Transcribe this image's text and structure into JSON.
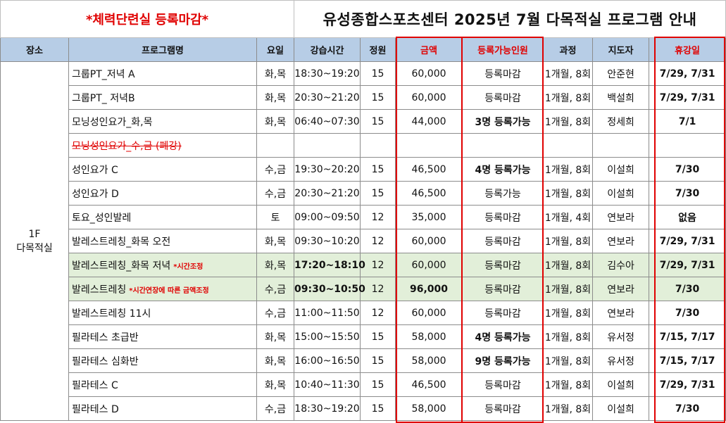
{
  "banner": {
    "left": "*체력단련실 등록마감*",
    "right": "유성종합스포츠센터 2025년 7월 다목적실 프로그램 안내"
  },
  "headers": {
    "place": "장소",
    "program": "프로그램명",
    "day": "요일",
    "time": "강습시간",
    "capacity": "정원",
    "price": "금액",
    "available": "등록가능인원",
    "course": "과정",
    "instructor": "지도자",
    "closed": "휴강일"
  },
  "place": "1F\n다목적실",
  "place_line1": "1F",
  "place_line2": "다목적실",
  "rows": [
    {
      "name": "그룹PT_저녁 A",
      "note": "",
      "day": "화,목",
      "time": "18:30~19:20",
      "capacity": "15",
      "price": "60,000",
      "available": "등록마감",
      "course": "1개월, 8회",
      "instructor": "안준현",
      "closed": "7/29, 7/31"
    },
    {
      "name": "그룹PT_ 저녁B",
      "note": "",
      "day": "화,목",
      "time": "20:30~21:20",
      "capacity": "15",
      "price": "60,000",
      "available": "등록마감",
      "course": "1개월, 8회",
      "instructor": "백설희",
      "closed": "7/29, 7/31"
    },
    {
      "name": "모닝성인요가_화,목",
      "note": "",
      "day": "화,목",
      "time": "06:40~07:30",
      "capacity": "15",
      "price": "44,000",
      "available": "3명 등록가능",
      "course": "1개월, 8회",
      "instructor": "정세희",
      "closed": "7/1"
    },
    {
      "name": "모닝성인요가_수,금 (폐강)",
      "note": "",
      "day": "",
      "time": "",
      "capacity": "",
      "price": "",
      "available": "",
      "course": "",
      "instructor": "",
      "closed": ""
    },
    {
      "name": "성인요가 C",
      "note": "",
      "day": "수,금",
      "time": "19:30~20:20",
      "capacity": "15",
      "price": "46,500",
      "available": "4명 등록가능",
      "course": "1개월, 8회",
      "instructor": "이설희",
      "closed": "7/30"
    },
    {
      "name": "성인요가 D",
      "note": "",
      "day": "수,금",
      "time": "20:30~21:20",
      "capacity": "15",
      "price": "46,500",
      "available": "등록가능",
      "course": "1개월, 8회",
      "instructor": "이설희",
      "closed": "7/30"
    },
    {
      "name": "토요_성인발레",
      "note": "",
      "day": "토",
      "time": "09:00~09:50",
      "capacity": "12",
      "price": "35,000",
      "available": "등록마감",
      "course": "1개월, 4회",
      "instructor": "연보라",
      "closed": "없음"
    },
    {
      "name": "발레스트레칭_화목 오전",
      "note": "",
      "day": "화,목",
      "time": "09:30~10:20",
      "capacity": "12",
      "price": "60,000",
      "available": "등록마감",
      "course": "1개월, 8회",
      "instructor": "연보라",
      "closed": "7/29, 7/31"
    },
    {
      "name": "발레스트레칭_화목 저녁",
      "note": "*시간조정",
      "day": "화,목",
      "time": "17:20~18:10",
      "capacity": "12",
      "price": "60,000",
      "available": "등록마감",
      "course": "1개월, 8회",
      "instructor": "김수아",
      "closed": "7/29, 7/31"
    },
    {
      "name": "발레스트레칭",
      "note": "*시간연장에 따른 금액조정",
      "day": "수,금",
      "time": "09:30~10:50",
      "capacity": "12",
      "price": "96,000",
      "available": "등록마감",
      "course": "1개월, 8회",
      "instructor": "연보라",
      "closed": "7/30"
    },
    {
      "name": "발레스트레칭 11시",
      "note": "",
      "day": "수,금",
      "time": "11:00~11:50",
      "capacity": "12",
      "price": "60,000",
      "available": "등록마감",
      "course": "1개월, 8회",
      "instructor": "연보라",
      "closed": "7/30"
    },
    {
      "name": "필라테스 초급반",
      "note": "",
      "day": "화,목",
      "time": "15:00~15:50",
      "capacity": "15",
      "price": "58,000",
      "available": "4명 등록가능",
      "course": "1개월, 8회",
      "instructor": "유서정",
      "closed": "7/15, 7/17"
    },
    {
      "name": "필라테스 심화반",
      "note": "",
      "day": "화,목",
      "time": "16:00~16:50",
      "capacity": "15",
      "price": "58,000",
      "available": "9명 등록가능",
      "course": "1개월, 8회",
      "instructor": "유서정",
      "closed": "7/15, 7/17"
    },
    {
      "name": "필라테스 C",
      "note": "",
      "day": "화,목",
      "time": "10:40~11:30",
      "capacity": "15",
      "price": "46,500",
      "available": "등록마감",
      "course": "1개월, 8회",
      "instructor": "이설희",
      "closed": "7/29, 7/31"
    },
    {
      "name": "필라테스 D",
      "note": "",
      "day": "수,금",
      "time": "18:30~19:20",
      "capacity": "15",
      "price": "58,000",
      "available": "등록마감",
      "course": "1개월, 8회",
      "instructor": "이설희",
      "closed": "7/30"
    }
  ],
  "colors": {
    "header_bg": "#b7cde6",
    "highlight_red": "#e00000",
    "available_blue": "#1c2fb8",
    "adjusted_row_bg": "#e2efd9"
  }
}
